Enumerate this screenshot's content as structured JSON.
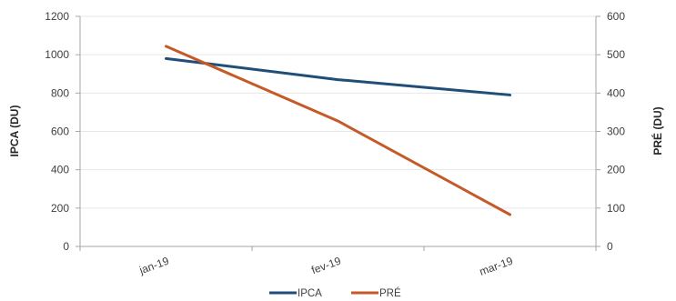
{
  "chart_data": {
    "type": "line",
    "categories": [
      "jan-19",
      "fev-19",
      "mar-19"
    ],
    "series": [
      {
        "name": "IPCA",
        "axis": "left",
        "color": "#1F4E79",
        "values": [
          980,
          870,
          790
        ]
      },
      {
        "name": "PRÉ",
        "axis": "right",
        "color": "#C55A28",
        "values": [
          522,
          327,
          83
        ]
      }
    ],
    "y_left": {
      "label": "IPCA (DU)",
      "ylim": [
        0,
        1200
      ],
      "ticks": [
        0,
        200,
        400,
        600,
        800,
        1000,
        1200
      ]
    },
    "y_right": {
      "label": "PRÉ (DU)",
      "ylim": [
        0,
        600
      ],
      "ticks": [
        0,
        100,
        200,
        300,
        400,
        500,
        600
      ]
    },
    "grid": true,
    "legend": "bottom-center",
    "grid_color": "#E6E6E6",
    "axis_color": "#A6A6A6"
  }
}
